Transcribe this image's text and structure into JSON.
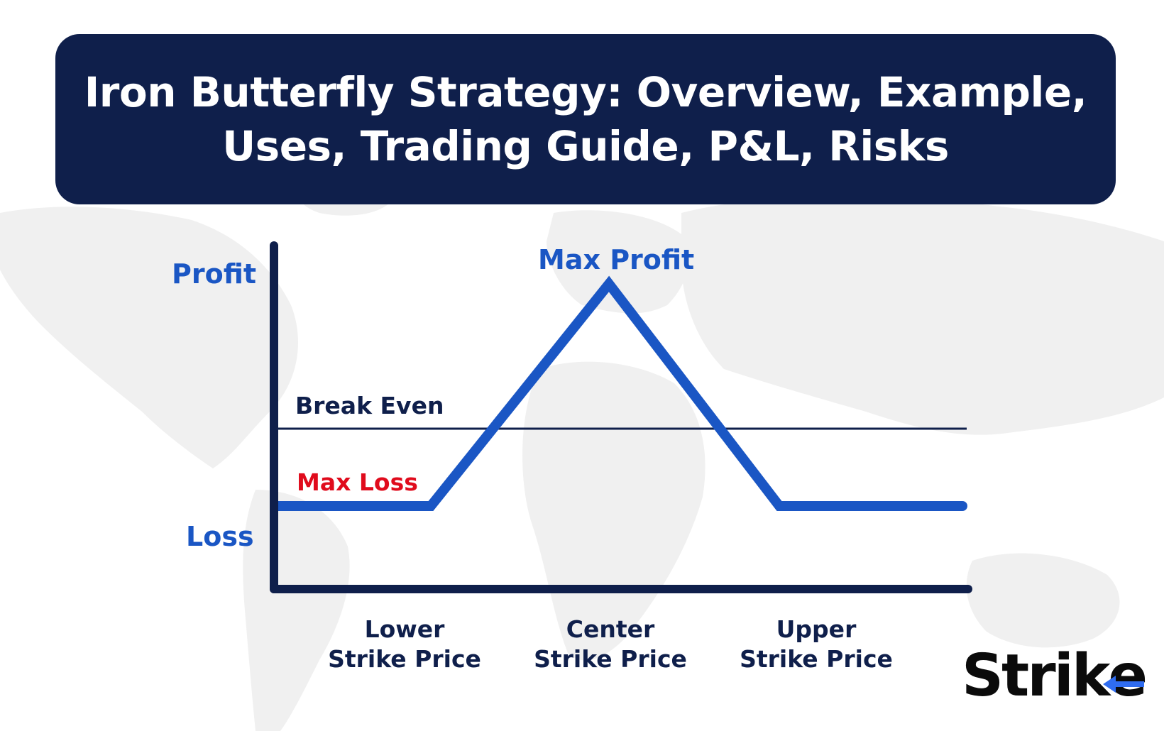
{
  "header": {
    "title_line1": "Iron Butterfly Strategy: Overview, Example,",
    "title_line2": "Uses, Trading Guide, P&L, Risks"
  },
  "diagram": {
    "y_axis_top_label": "Profit",
    "y_axis_bottom_label": "Loss",
    "peak_label": "Max Profit",
    "breakeven_label": "Break Even",
    "min_label": "Max Loss",
    "x_ticks": [
      {
        "line1": "Lower",
        "line2": "Strike Price"
      },
      {
        "line1": "Center",
        "line2": "Strike Price"
      },
      {
        "line1": "Upper",
        "line2": "Strike Price"
      }
    ],
    "payoff_points": [
      {
        "x": "start",
        "y": "Max Loss"
      },
      {
        "x": "Lower Strike Price",
        "y": "Max Loss"
      },
      {
        "x": "Center Strike Price",
        "y": "Max Profit"
      },
      {
        "x": "Upper Strike Price",
        "y": "Max Loss"
      },
      {
        "x": "end",
        "y": "Max Loss"
      }
    ]
  },
  "brand": {
    "logo_text_main": "Stri",
    "logo_text_k": "k",
    "logo_text_e": "e"
  },
  "colors": {
    "banner": "#0f1f4b",
    "payoff_line": "#1a56c4",
    "axis": "#0f1f4b",
    "max_loss_text": "#e00b1c",
    "logo_accent": "#2f6cf0",
    "map": "#f1f1f1"
  }
}
